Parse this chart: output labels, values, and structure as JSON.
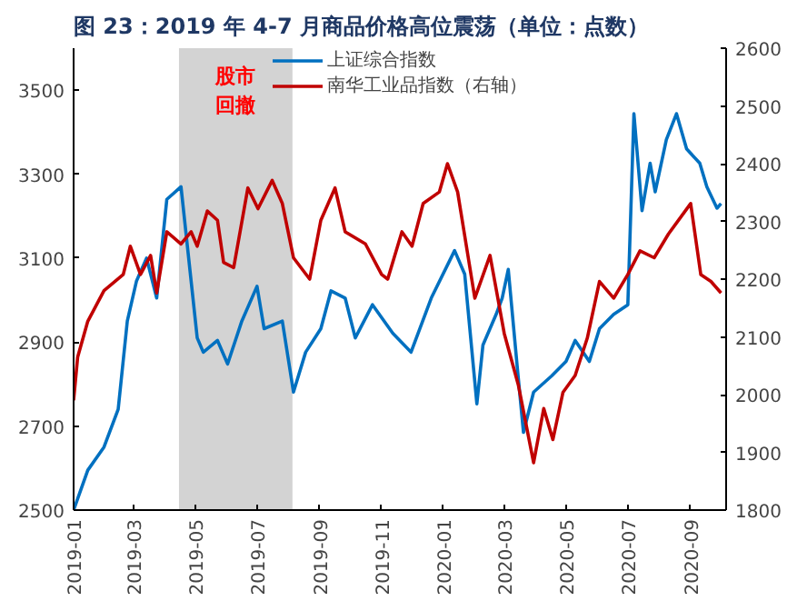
{
  "chart_data": {
    "type": "line",
    "title": "图 23：2019 年 4-7 月商品价格高位震荡（单位：点数）",
    "series": [
      {
        "name": "上证综合指数",
        "color": "#0070c0",
        "axis": "y",
        "x": [
          "2019-01-01",
          "2019-01-15",
          "2019-01-31",
          "2019-02-14",
          "2019-02-23",
          "2019-03-04",
          "2019-03-14",
          "2019-03-24",
          "2019-04-03",
          "2019-04-17",
          "2019-04-23",
          "2019-05-03",
          "2019-05-09",
          "2019-05-23",
          "2019-06-02",
          "2019-06-16",
          "2019-07-01",
          "2019-07-08",
          "2019-07-26",
          "2019-08-06",
          "2019-08-18",
          "2019-09-02",
          "2019-09-12",
          "2019-09-26",
          "2019-10-06",
          "2019-10-23",
          "2019-11-12",
          "2019-11-30",
          "2019-12-20",
          "2020-01-12",
          "2020-01-22",
          "2020-02-03",
          "2020-02-09",
          "2020-02-22",
          "2020-02-28",
          "2020-03-05",
          "2020-03-14",
          "2020-03-20",
          "2020-03-30",
          "2020-04-17",
          "2020-05-01",
          "2020-05-10",
          "2020-05-24",
          "2020-06-03",
          "2020-06-17",
          "2020-07-01",
          "2020-07-07",
          "2020-07-15",
          "2020-07-23",
          "2020-07-28",
          "2020-08-08",
          "2020-08-18",
          "2020-08-28",
          "2020-09-10",
          "2020-09-17",
          "2020-09-27",
          "2020-10-01"
        ],
        "values": [
          2500,
          2595,
          2650,
          2740,
          2950,
          3045,
          3100,
          3005,
          3240,
          3270,
          3135,
          2910,
          2876,
          2904,
          2848,
          2950,
          3033,
          2932,
          2950,
          2781,
          2876,
          2932,
          3022,
          3005,
          2910,
          2989,
          2921,
          2876,
          3005,
          3118,
          3062,
          2753,
          2893,
          2966,
          3005,
          3073,
          2837,
          2685,
          2781,
          2820,
          2854,
          2904,
          2854,
          2932,
          2966,
          2989,
          3444,
          3213,
          3326,
          3258,
          3382,
          3444,
          3360,
          3326,
          3270,
          3219,
          3230
        ]
      },
      {
        "name": "南华工业品指数（右轴）",
        "color": "#c00000",
        "axis": "y2",
        "x": [
          "2019-01-01",
          "2019-01-05",
          "2019-01-15",
          "2019-01-31",
          "2019-02-19",
          "2019-02-26",
          "2019-03-08",
          "2019-03-18",
          "2019-03-24",
          "2019-04-03",
          "2019-04-17",
          "2019-04-27",
          "2019-05-03",
          "2019-05-13",
          "2019-05-23",
          "2019-05-29",
          "2019-06-08",
          "2019-06-22",
          "2019-07-02",
          "2019-07-16",
          "2019-07-26",
          "2019-08-06",
          "2019-08-22",
          "2019-09-02",
          "2019-09-16",
          "2019-09-26",
          "2019-10-16",
          "2019-11-01",
          "2019-11-07",
          "2019-11-21",
          "2019-12-01",
          "2019-12-12",
          "2019-12-28",
          "2020-01-05",
          "2020-01-15",
          "2020-02-01",
          "2020-02-16",
          "2020-03-01",
          "2020-03-15",
          "2020-03-30",
          "2020-04-09",
          "2020-04-18",
          "2020-04-28",
          "2020-05-10",
          "2020-05-22",
          "2020-06-03",
          "2020-06-17",
          "2020-07-01",
          "2020-07-13",
          "2020-07-27",
          "2020-08-10",
          "2020-09-01",
          "2020-09-11",
          "2020-09-21",
          "2020-10-01"
        ],
        "values": [
          1990,
          2065,
          2127,
          2180,
          2208,
          2257,
          2208,
          2241,
          2176,
          2282,
          2261,
          2282,
          2257,
          2318,
          2302,
          2229,
          2220,
          2358,
          2322,
          2371,
          2331,
          2237,
          2200,
          2302,
          2358,
          2282,
          2261,
          2208,
          2200,
          2282,
          2257,
          2331,
          2351,
          2400,
          2351,
          2167,
          2241,
          2106,
          2016,
          1882,
          1976,
          1922,
          2004,
          2033,
          2098,
          2196,
          2167,
          2208,
          2249,
          2237,
          2278,
          2331,
          2208,
          2196,
          2176
        ]
      }
    ],
    "xlim": [
      "2019-01-01",
      "2020-10-06"
    ],
    "xticks": [
      "2019-01",
      "2019-03",
      "2019-05",
      "2019-07",
      "2019-09",
      "2019-11",
      "2020-01",
      "2020-03",
      "2020-05",
      "2020-07",
      "2020-09"
    ],
    "ylim": [
      2500,
      3600
    ],
    "yticks": [
      2500,
      2700,
      2900,
      3100,
      3300,
      3500
    ],
    "y2lim": [
      1800,
      2600
    ],
    "y2ticks": [
      1800,
      1900,
      2000,
      2100,
      2200,
      2300,
      2400,
      2500,
      2600
    ],
    "bands": [
      {
        "axis": "x",
        "from": "2019-04-15",
        "to": "2019-08-05",
        "label": "股市回撤",
        "color": "#d3d3d3"
      }
    ],
    "legend": "top",
    "grid": false
  }
}
